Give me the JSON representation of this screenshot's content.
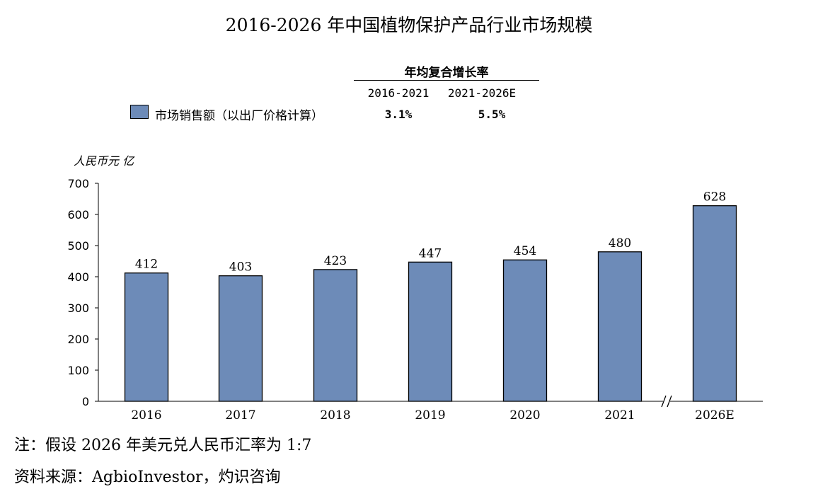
{
  "chart_data": {
    "type": "bar",
    "title": "2016-2026 年中国植物保护产品行业市场规模",
    "ylabel": "人民币元 亿",
    "xlabel": "",
    "categories": [
      "2016",
      "2017",
      "2018",
      "2019",
      "2020",
      "2021",
      "2026E"
    ],
    "series": [
      {
        "name": "市场销售额（以出厂价格计算）",
        "values": [
          412,
          403,
          423,
          447,
          454,
          480,
          628
        ]
      }
    ],
    "ylim": [
      0,
      700
    ],
    "yticks": [
      "0",
      "100",
      "200",
      "300",
      "400",
      "500",
      "600",
      "700"
    ],
    "axis_break_symbol": "//",
    "bar_color": "#6d8bb8",
    "grid": false,
    "cagr_table": {
      "header": "年均复合增长率",
      "periods": [
        "2016-2021",
        "2021-2026E"
      ],
      "rates": [
        "3.1%",
        "5.5%"
      ]
    }
  },
  "note": "注：假设 2026 年美元兑人民币汇率为 1:7",
  "source": "资料来源：AgbioInvestor，灼识咨询"
}
